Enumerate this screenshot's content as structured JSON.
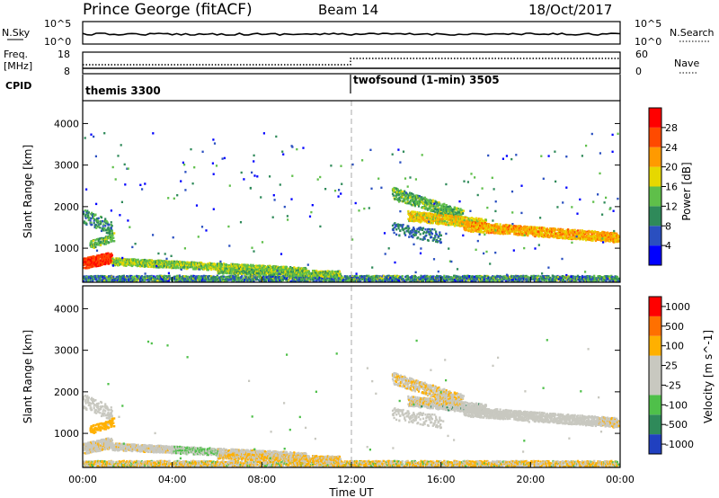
{
  "header": {
    "station": "Prince George (fitACF)",
    "beam": "Beam 14",
    "date": "18/Oct/2017"
  },
  "top_panels": {
    "nsky": {
      "label": "N.Sky",
      "left_ticks": [
        "10^5",
        "10^0"
      ],
      "right_ticks": [
        "10^5",
        "10^0"
      ],
      "right_label": "N.Search"
    },
    "freq": {
      "label_line1": "Freq.",
      "label_line2": "[MHz]",
      "left_ticks": [
        "18",
        "8"
      ],
      "right_ticks": [
        "60",
        "0"
      ],
      "right_label": "Nave"
    },
    "cpid": {
      "label": "CPID",
      "programs": [
        {
          "name": "themis 3300",
          "start_hour": 0
        },
        {
          "name": "twofsound (1-min) 3505",
          "start_hour": 12
        }
      ]
    }
  },
  "chart_data": [
    {
      "type": "heatmap",
      "name": "Power",
      "ylabel": "Slant Range [km]",
      "xlabel": "Time UT",
      "x_range_hours": [
        0,
        24
      ],
      "y_range": [
        180,
        4550
      ],
      "y_ticks": [
        "1000",
        "2000",
        "3000",
        "4000"
      ],
      "colorbar": {
        "label": "Power [dB]",
        "ticks": [
          "4",
          "8",
          "12",
          "16",
          "20",
          "24",
          "28"
        ],
        "colors": [
          "#0000ff",
          "#2a4fc0",
          "#2f8a5a",
          "#5fbf4a",
          "#e6d800",
          "#ff9a00",
          "#ff4a00",
          "#ff0000"
        ]
      },
      "features": [
        {
          "desc": "near-range intense echoes",
          "time_hours": [
            0,
            1.3
          ],
          "range_km": [
            500,
            900
          ],
          "power_db": 28
        },
        {
          "desc": "near-range band",
          "time_hours": [
            0,
            10
          ],
          "range_km": [
            350,
            800
          ],
          "power_db": 16
        },
        {
          "desc": "far-range band",
          "time_hours": [
            13.8,
            24
          ],
          "range_km": [
            1100,
            2400
          ],
          "power_db": 20
        }
      ]
    },
    {
      "type": "heatmap",
      "name": "Velocity",
      "ylabel": "Slant Range [km]",
      "xlabel": "Time UT",
      "x_range_hours": [
        0,
        24
      ],
      "y_range": [
        180,
        4550
      ],
      "y_ticks": [
        "1000",
        "2000",
        "3000",
        "4000"
      ],
      "colorbar": {
        "label": "Velocity [m s^-1]",
        "ticks": [
          "1000",
          "500",
          "100",
          "25",
          "-25",
          "-100",
          "-500",
          "-1000"
        ],
        "colors": [
          "#2040c0",
          "#2f8a5a",
          "#4fc04a",
          "#c8c8c0",
          "#c8c8c0",
          "#ffb000",
          "#ff7000",
          "#ff0000"
        ]
      }
    }
  ],
  "x_axis": {
    "ticks": [
      "00:00",
      "04:00",
      "08:00",
      "12:00",
      "16:00",
      "20:00",
      "00:00"
    ],
    "label": "Time UT"
  },
  "colors": {
    "power_high": "#ff0000",
    "power_mid": "#f5d000",
    "power_low": "#0000ff",
    "velocity_ground": "#c8c8c0",
    "velocity_neg": "#ff9a00",
    "velocity_pos": "#2f8a5a"
  }
}
